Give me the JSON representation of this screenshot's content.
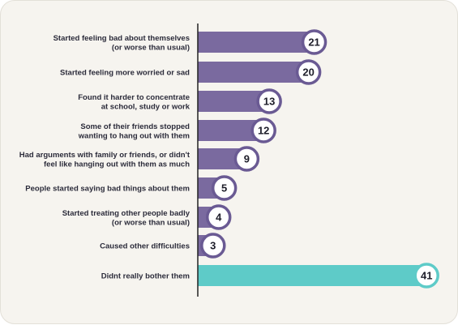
{
  "chart_data": {
    "type": "bar",
    "orientation": "horizontal",
    "categories": [
      [
        "Started feeling bad about themselves",
        "(or worse than usual)"
      ],
      [
        "Started feeling more worried or sad"
      ],
      [
        "Found it harder to concentrate",
        "at school, study or work"
      ],
      [
        "Some of their friends stopped",
        "wanting to hang out with them"
      ],
      [
        "Had arguments with family or friends, or didn't",
        "feel like hanging out with them as much"
      ],
      [
        "People started saying bad things about them"
      ],
      [
        "Started treating other people badly",
        "(or worse than usual)"
      ],
      [
        "Caused other difficulties"
      ],
      [
        "Didnt really bother them"
      ]
    ],
    "values": [
      21,
      20,
      13,
      12,
      9,
      5,
      4,
      3,
      41
    ],
    "value_labels": [
      "21",
      "20",
      "13",
      "12",
      "9",
      "5",
      "4",
      "3",
      "41"
    ],
    "xlim": [
      0,
      44
    ],
    "title": "",
    "xlabel": "",
    "ylabel": "",
    "grid": false,
    "colors": {
      "bar_default": "#7a6a9f",
      "bar_highlight": "#5ecbc8",
      "bubble_fill": "#ffffff",
      "bubble_stroke_default": "#6a5a93",
      "bubble_stroke_highlight": "#5ecbc8",
      "axis": "#222222"
    },
    "highlight_index": 8
  }
}
